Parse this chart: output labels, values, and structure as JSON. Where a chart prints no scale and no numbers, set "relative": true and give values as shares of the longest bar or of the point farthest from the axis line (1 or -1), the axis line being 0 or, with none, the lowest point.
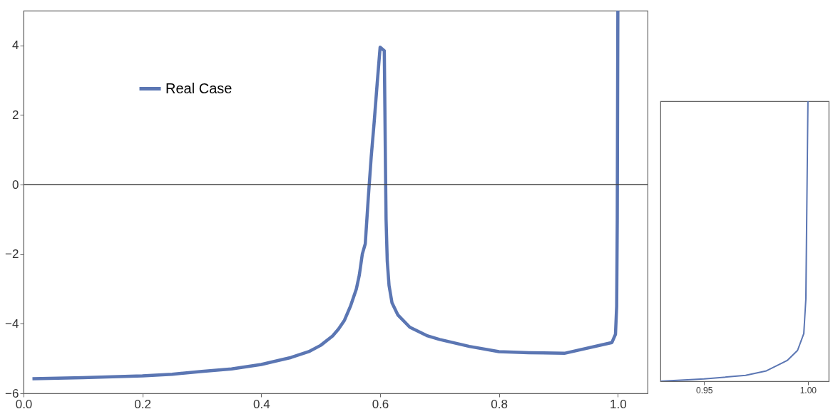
{
  "chart_data": [
    {
      "type": "line",
      "x": [
        0.015,
        0.1,
        0.2,
        0.25,
        0.3,
        0.35,
        0.4,
        0.45,
        0.48,
        0.5,
        0.52,
        0.53,
        0.54,
        0.55,
        0.56,
        0.565,
        0.57,
        0.575,
        0.58,
        0.585,
        0.59,
        0.595,
        0.6,
        0.607,
        0.608,
        0.609,
        0.61,
        0.612,
        0.615,
        0.62,
        0.63,
        0.65,
        0.68,
        0.7,
        0.75,
        0.8,
        0.85,
        0.91,
        0.99,
        0.996,
        0.998,
        0.999,
        1.0
      ],
      "series": [
        {
          "name": "Real Case",
          "color": "#5b76b3",
          "values": [
            -5.58,
            -5.55,
            -5.5,
            -5.45,
            -5.37,
            -5.3,
            -5.17,
            -4.97,
            -4.8,
            -4.62,
            -4.35,
            -4.15,
            -3.9,
            -3.5,
            -3.0,
            -2.6,
            -2.0,
            -1.7,
            -0.4,
            0.8,
            1.8,
            2.9,
            3.95,
            3.85,
            2.2,
            0.5,
            -1.0,
            -2.2,
            -2.9,
            -3.4,
            -3.75,
            -4.1,
            -4.35,
            -4.45,
            -4.65,
            -4.8,
            -4.83,
            -4.85,
            -4.54,
            -4.3,
            -3.5,
            -1.0,
            5.0
          ]
        }
      ],
      "xlim": [
        0,
        1.05
      ],
      "xticks": [
        {
          "value": 0,
          "label": "0.0"
        },
        0.2,
        0.4,
        0.6,
        0.8,
        {
          "value": 1,
          "label": "1.0"
        }
      ],
      "ylim": [
        -6,
        5
      ],
      "yticks": [
        {
          "value": -6,
          "label": "−6"
        },
        {
          "value": -4,
          "label": "−4"
        },
        {
          "value": -2,
          "label": "−2"
        },
        0,
        2,
        4
      ],
      "ref_lines": [
        {
          "axis": "y",
          "value": 0,
          "color": "#444444"
        }
      ],
      "legend": "top left",
      "grid": false
    },
    {
      "type": "line",
      "x": [
        0.929,
        0.95,
        0.97,
        0.98,
        0.99,
        0.995,
        0.998,
        0.999,
        1.0
      ],
      "series": [
        {
          "color": "#5b76b3",
          "values": [
            0,
            0.008,
            0.021,
            0.037,
            0.074,
            0.11,
            0.17,
            0.294,
            1
          ]
        }
      ],
      "relative": true,
      "xlim": [
        0.929,
        1.01
      ],
      "xticks": [
        {
          "value": 0.95,
          "label": "0.95"
        },
        {
          "value": 1,
          "label": "1.00"
        }
      ],
      "grid": false
    }
  ]
}
